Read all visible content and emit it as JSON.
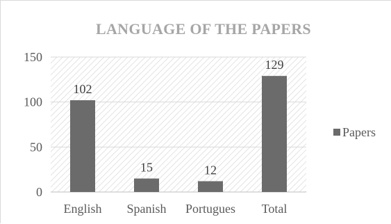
{
  "chart_data": {
    "type": "bar",
    "title": "LANGUAGE OF THE PAPERS",
    "xlabel": "",
    "ylabel": "",
    "categories": [
      "English",
      "Spanish",
      "Portugues",
      "Total"
    ],
    "series": [
      {
        "name": "Papers",
        "values": [
          102,
          15,
          12,
          129
        ],
        "color": "#6b6b6b"
      }
    ],
    "ylim": [
      0,
      150
    ],
    "yticks": [
      0,
      50,
      100,
      150
    ],
    "grid": true,
    "legend": "right",
    "data_labels": true,
    "plot_background": "hatched"
  }
}
